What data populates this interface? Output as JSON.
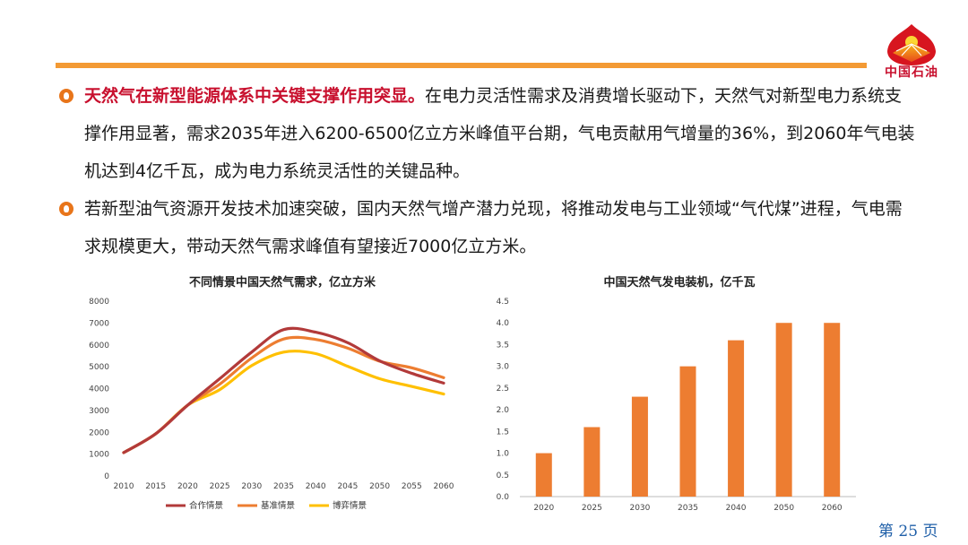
{
  "brand": {
    "logo_text": "中国石油",
    "accent": "#f39a34",
    "red": "#c8102e"
  },
  "bullets": [
    {
      "highlight": "天然气在新型能源体系中关键支撑作用突显。",
      "text": "在电力灵活性需求及消费增长驱动下，天然气对新型电力系统支撑作用显著，需求2035年进入6200-6500亿立方米峰值平台期，气电贡献用气增量的36%，到2060年气电装机达到4亿千瓦，成为电力系统灵活性的关键品种。"
    },
    {
      "highlight": "",
      "text": "若新型油气资源开发技术加速突破，国内天然气增产潜力兑现，将推动发电与工业领域“气代煤”进程，气电需求规模更大，带动天然气需求峰值有望接近7000亿立方米。"
    }
  ],
  "page": {
    "prefix": "第",
    "number": "25",
    "suffix": "页"
  },
  "chart_data": [
    {
      "type": "line",
      "title": "不同情景中国天然气需求，亿立方米",
      "x": [
        2010,
        2015,
        2020,
        2025,
        2030,
        2035,
        2040,
        2045,
        2050,
        2055,
        2060
      ],
      "ylim": [
        0,
        8000
      ],
      "yticks": [
        0,
        1000,
        2000,
        3000,
        4000,
        5000,
        6000,
        7000,
        8000
      ],
      "legend": "bottom",
      "series": [
        {
          "name": "合作情景",
          "color": "#b23a3a",
          "values": [
            1070,
            1930,
            3240,
            4450,
            5670,
            6700,
            6580,
            6100,
            5270,
            4700,
            4250
          ]
        },
        {
          "name": "基准情景",
          "color": "#ed7d31",
          "values": [
            1070,
            1930,
            3240,
            4200,
            5400,
            6270,
            6250,
            5850,
            5250,
            4950,
            4500
          ]
        },
        {
          "name": "博弈情景",
          "color": "#ffc000",
          "values": [
            1070,
            1930,
            3240,
            3950,
            5050,
            5670,
            5600,
            5020,
            4450,
            4100,
            3750
          ]
        }
      ]
    },
    {
      "type": "bar",
      "title": "中国天然气发电装机，亿千瓦",
      "categories": [
        "2020",
        "2025",
        "2030",
        "2035",
        "2040",
        "2050",
        "2060"
      ],
      "values": [
        1.0,
        1.6,
        2.3,
        3.0,
        3.6,
        4.0,
        4.0
      ],
      "ylim": [
        0,
        4.5
      ],
      "yticks": [
        "0.0",
        "0.5",
        "1.0",
        "1.5",
        "2.0",
        "2.5",
        "3.0",
        "3.5",
        "4.0",
        "4.5"
      ],
      "color": "#ed7d31"
    }
  ]
}
